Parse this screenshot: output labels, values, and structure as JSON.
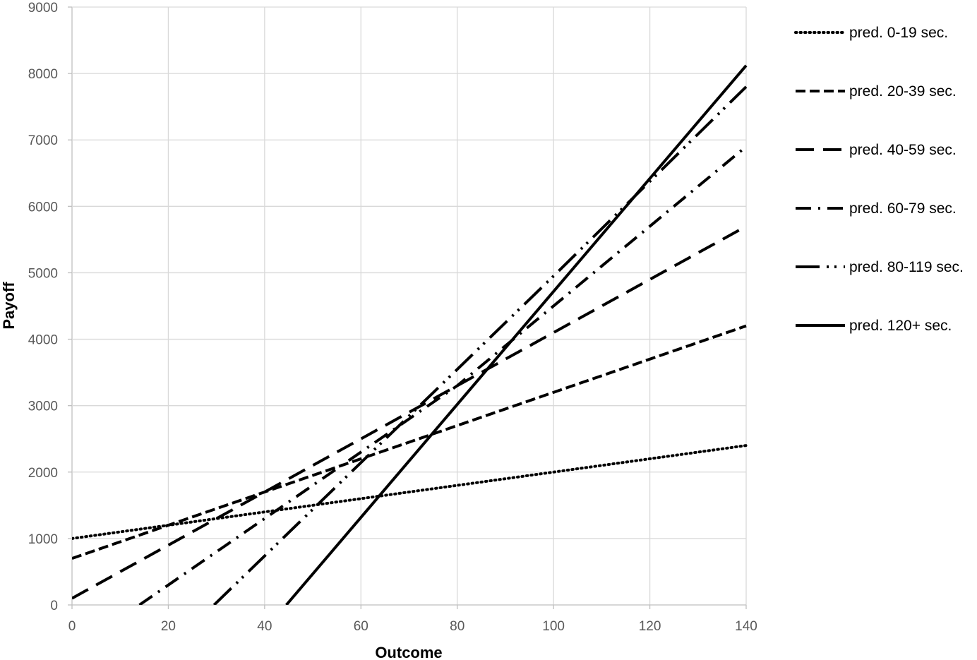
{
  "chart_data": {
    "type": "line",
    "title": "",
    "xlabel": "Outcome",
    "ylabel": "Payoff",
    "xlim": [
      0,
      140
    ],
    "ylim": [
      0,
      9000
    ],
    "x_ticks": [
      "0",
      "20",
      "40",
      "60",
      "80",
      "100",
      "120",
      "140"
    ],
    "y_ticks": [
      "0",
      "1000",
      "2000",
      "3000",
      "4000",
      "5000",
      "6000",
      "7000",
      "8000",
      "9000"
    ],
    "grid": true,
    "legend_position": "right",
    "line_color": "#000000",
    "series": [
      {
        "name": "pred. 0-19 sec.",
        "style": "dotted",
        "x": [
          0,
          140
        ],
        "y": [
          1000,
          2400
        ]
      },
      {
        "name": "pred. 20-39 sec.",
        "style": "short-dash",
        "x": [
          0,
          40,
          140
        ],
        "y": [
          700,
          1700,
          4200
        ]
      },
      {
        "name": "pred. 40-59 sec.",
        "style": "long-dash",
        "x": [
          0,
          60,
          140
        ],
        "y": [
          100,
          2500,
          5700
        ]
      },
      {
        "name": "pred. 60-79 sec.",
        "style": "dash-dot",
        "x": [
          14,
          80,
          140
        ],
        "y": [
          0,
          3300,
          6900
        ]
      },
      {
        "name": "pred. 80-119 sec.",
        "style": "long-dash-dot-dot",
        "x": [
          29.5,
          100,
          140
        ],
        "y": [
          0,
          4950,
          7800
        ]
      },
      {
        "name": "pred. 120+ sec.",
        "style": "solid",
        "x": [
          44.5,
          140
        ],
        "y": [
          0,
          8120
        ]
      }
    ]
  }
}
